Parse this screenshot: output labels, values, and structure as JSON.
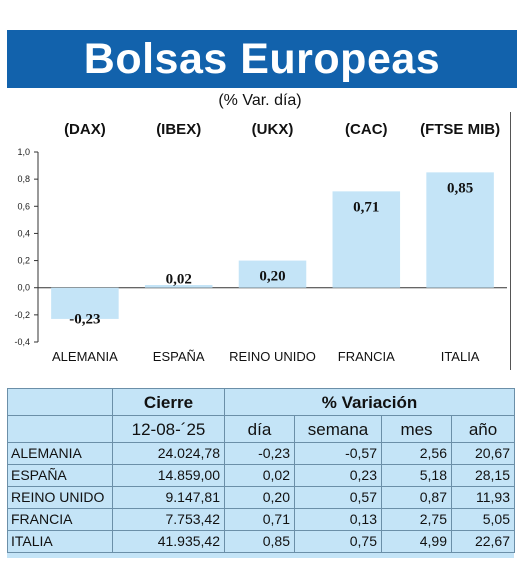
{
  "header": {
    "title": "Bolsas Europeas",
    "subtitle": "(% Var. día)"
  },
  "chart_data": {
    "type": "bar",
    "indices": [
      "(DAX)",
      "(IBEX)",
      "(UKX)",
      "(CAC)",
      "(FTSE MIB)"
    ],
    "categories": [
      "ALEMANIA",
      "ESPAÑA",
      "REINO UNIDO",
      "FRANCIA",
      "ITALIA"
    ],
    "values": [
      -0.23,
      0.02,
      0.2,
      0.71,
      0.85
    ],
    "value_labels": [
      "-0,23",
      "0,02",
      "0,20",
      "0,71",
      "0,85"
    ],
    "ylim": [
      -0.4,
      1.0
    ],
    "y_ticks": [
      1.0,
      0.8,
      0.6,
      0.4,
      0.2,
      0.0,
      -0.2,
      -0.4
    ],
    "y_tick_labels": [
      "1,0",
      "0,8",
      "0,6",
      "0,4",
      "0,2",
      "0,0",
      "-0,2",
      "-0,4"
    ],
    "bar_color": "#c4e4f7",
    "grid": false,
    "legend": "none"
  },
  "table": {
    "head_cierre": "Cierre",
    "head_variacion": "% Variación",
    "date": "12-08-´25",
    "col_dia": "día",
    "col_semana": "semana",
    "col_mes": "mes",
    "col_ano": "año",
    "rows": [
      {
        "name": "ALEMANIA",
        "cierre": "24.024,78",
        "dia": "-0,23",
        "semana": "-0,57",
        "mes": "2,56",
        "ano": "20,67"
      },
      {
        "name": "ESPAÑA",
        "cierre": "14.859,00",
        "dia": "0,02",
        "semana": "0,23",
        "mes": "5,18",
        "ano": "28,15"
      },
      {
        "name": "REINO UNIDO",
        "cierre": "9.147,81",
        "dia": "0,20",
        "semana": "0,57",
        "mes": "0,87",
        "ano": "11,93"
      },
      {
        "name": "FRANCIA",
        "cierre": "7.753,42",
        "dia": "0,71",
        "semana": "0,13",
        "mes": "2,75",
        "ano": "5,05"
      },
      {
        "name": "ITALIA",
        "cierre": "41.935,42",
        "dia": "0,85",
        "semana": "0,75",
        "mes": "4,99",
        "ano": "22,67"
      }
    ]
  }
}
